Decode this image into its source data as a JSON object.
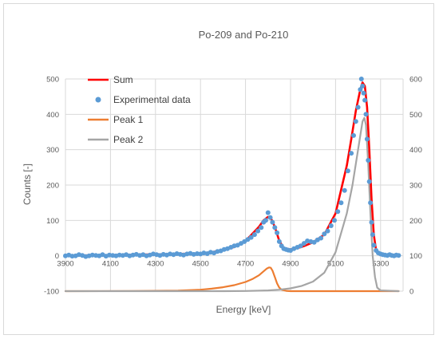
{
  "chart_data": {
    "type": "line",
    "title": "Po-209 and Po-210",
    "xlabel": "Energy [keV]",
    "ylabel": "Counts [-]",
    "xlim": [
      3900,
      5400
    ],
    "xticks": [
      3900,
      4100,
      4300,
      4500,
      4700,
      4900,
      5100,
      5300
    ],
    "ylim_left": [
      -100,
      500
    ],
    "yticks_left": [
      -100,
      0,
      100,
      200,
      300,
      400,
      500
    ],
    "ylim_right": [
      0,
      600
    ],
    "yticks_right": [
      0,
      100,
      200,
      300,
      400,
      500,
      600
    ],
    "grid": true,
    "legend_position": "top-left",
    "series": [
      {
        "name": "Sum",
        "kind": "line",
        "axis": "left",
        "color": "#ff0000",
        "x": [
          3900,
          4000,
          4100,
          4200,
          4300,
          4400,
          4500,
          4550,
          4600,
          4650,
          4700,
          4730,
          4760,
          4780,
          4800,
          4810,
          4820,
          4835,
          4850,
          4870,
          4900,
          4950,
          5000,
          5050,
          5100,
          5150,
          5170,
          5190,
          5210,
          5220,
          5230,
          5240,
          5250,
          5260,
          5270,
          5280,
          5290,
          5300,
          5320,
          5350,
          5380
        ],
        "y": [
          0,
          1,
          2,
          3,
          4,
          5,
          7,
          10,
          16,
          25,
          42,
          62,
          82,
          100,
          110,
          108,
          98,
          72,
          42,
          22,
          18,
          25,
          38,
          60,
          120,
          255,
          330,
          410,
          470,
          490,
          480,
          420,
          300,
          160,
          60,
          15,
          5,
          2,
          1,
          0,
          0
        ]
      },
      {
        "name": "Experimental data",
        "kind": "scatter",
        "axis": "left",
        "color": "#5b9bd5",
        "x": [
          3900,
          3915,
          3930,
          3945,
          3960,
          3975,
          3990,
          4005,
          4020,
          4035,
          4050,
          4065,
          4080,
          4095,
          4110,
          4125,
          4140,
          4155,
          4170,
          4185,
          4200,
          4215,
          4230,
          4245,
          4260,
          4275,
          4290,
          4305,
          4320,
          4335,
          4350,
          4365,
          4380,
          4395,
          4410,
          4425,
          4440,
          4455,
          4470,
          4485,
          4500,
          4515,
          4530,
          4545,
          4560,
          4575,
          4590,
          4605,
          4620,
          4635,
          4650,
          4665,
          4680,
          4695,
          4710,
          4725,
          4740,
          4755,
          4770,
          4780,
          4790,
          4800,
          4810,
          4820,
          4830,
          4840,
          4850,
          4860,
          4870,
          4880,
          4890,
          4900,
          4915,
          4930,
          4945,
          4960,
          4975,
          4990,
          5005,
          5020,
          5035,
          5050,
          5065,
          5080,
          5095,
          5110,
          5125,
          5140,
          5155,
          5170,
          5180,
          5190,
          5200,
          5210,
          5215,
          5220,
          5225,
          5230,
          5235,
          5240,
          5245,
          5250,
          5255,
          5260,
          5265,
          5270,
          5280,
          5290,
          5300,
          5310,
          5320,
          5330,
          5340,
          5350,
          5360,
          5370,
          5380
        ],
        "y": [
          0,
          2,
          -1,
          0,
          3,
          1,
          -2,
          0,
          2,
          1,
          0,
          3,
          -1,
          2,
          1,
          0,
          2,
          1,
          3,
          0,
          2,
          4,
          1,
          3,
          0,
          2,
          5,
          3,
          1,
          4,
          2,
          5,
          3,
          6,
          4,
          2,
          5,
          7,
          4,
          6,
          5,
          8,
          6,
          10,
          8,
          12,
          14,
          18,
          20,
          24,
          28,
          30,
          35,
          40,
          46,
          52,
          60,
          70,
          80,
          95,
          100,
          122,
          108,
          95,
          80,
          65,
          40,
          28,
          20,
          18,
          16,
          15,
          20,
          24,
          28,
          35,
          42,
          40,
          38,
          45,
          50,
          62,
          70,
          85,
          100,
          125,
          150,
          185,
          240,
          290,
          340,
          380,
          420,
          470,
          500,
          480,
          460,
          440,
          400,
          330,
          270,
          210,
          150,
          95,
          60,
          30,
          15,
          8,
          5,
          3,
          2,
          1,
          3,
          1,
          0,
          2,
          1
        ]
      },
      {
        "name": "Peak 1",
        "kind": "line",
        "axis": "right",
        "color": "#ed7d31",
        "x": [
          3900,
          4200,
          4400,
          4500,
          4550,
          4600,
          4650,
          4700,
          4730,
          4760,
          4780,
          4795,
          4805,
          4812,
          4820,
          4830,
          4840,
          4850,
          4860,
          4880,
          4900,
          5000,
          5200,
          5380
        ],
        "y": [
          0,
          0.3,
          1.5,
          4,
          7,
          11,
          17,
          26,
          34,
          45,
          56,
          64,
          67,
          66,
          58,
          40,
          22,
          10,
          4,
          1,
          0,
          0,
          0,
          0
        ]
      },
      {
        "name": "Peak 2",
        "kind": "line",
        "axis": "right",
        "color": "#a5a5a5",
        "x": [
          3900,
          4600,
          4700,
          4800,
          4850,
          4900,
          4950,
          5000,
          5050,
          5100,
          5150,
          5175,
          5200,
          5210,
          5220,
          5228,
          5235,
          5245,
          5255,
          5265,
          5275,
          5285,
          5300,
          5380
        ],
        "y": [
          0,
          0,
          0.5,
          2,
          4,
          8,
          15,
          27,
          52,
          110,
          220,
          300,
          400,
          440,
          480,
          490,
          470,
          360,
          220,
          100,
          40,
          10,
          2,
          0
        ]
      }
    ]
  }
}
